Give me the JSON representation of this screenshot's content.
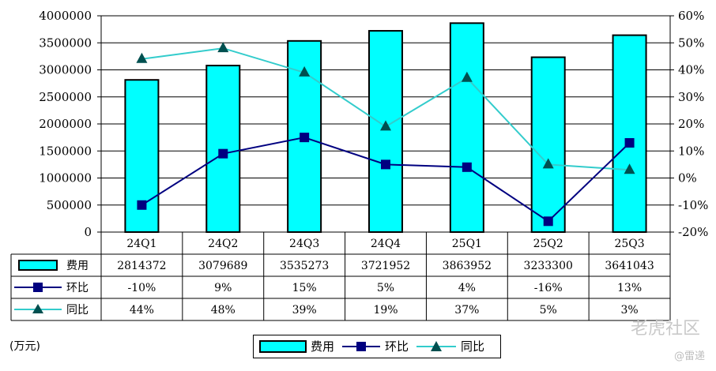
{
  "chart_data": {
    "type": "bar",
    "categories": [
      "24Q1",
      "24Q2",
      "24Q3",
      "24Q4",
      "25Q1",
      "25Q2",
      "25Q3"
    ],
    "series": [
      {
        "name": "费用",
        "kind": "bar",
        "axis": "left",
        "values": [
          2814372,
          3079689,
          3535273,
          3721952,
          3863952,
          3233300,
          3641043
        ]
      },
      {
        "name": "环比",
        "kind": "line",
        "axis": "right",
        "marker": "square",
        "values": [
          -10,
          9,
          15,
          5,
          4,
          -16,
          13
        ]
      },
      {
        "name": "同比",
        "kind": "line",
        "axis": "right",
        "marker": "triangle",
        "values": [
          44,
          48,
          39,
          19,
          37,
          5,
          3
        ]
      }
    ],
    "table": {
      "费用": [
        "2814372",
        "3079689",
        "3535273",
        "3721952",
        "3863952",
        "3233300",
        "3641043"
      ],
      "环比": [
        "-10%",
        "9%",
        "15%",
        "5%",
        "4%",
        "-16%",
        "13%"
      ],
      "同比": [
        "44%",
        "48%",
        "39%",
        "19%",
        "37%",
        "5%",
        "3%"
      ]
    },
    "y_left": {
      "range": [
        0,
        4000000
      ],
      "ticks": [
        "0",
        "500000",
        "1000000",
        "1500000",
        "2000000",
        "2500000",
        "3000000",
        "3500000",
        "4000000"
      ]
    },
    "y_right": {
      "range": [
        -20,
        60
      ],
      "ticks": [
        "-20%",
        "-10%",
        "0%",
        "10%",
        "20%",
        "30%",
        "40%",
        "50%",
        "60%"
      ]
    },
    "unit_label": "(万元)",
    "legend": [
      "费用",
      "环比",
      "同比"
    ],
    "legend_position": "bottom",
    "grid": true,
    "colors": {
      "bar": "#00ffff",
      "qoq": "#000080",
      "yoy": "#33cccc"
    }
  },
  "watermark": {
    "main": "老虎社区",
    "sub": "@雷递"
  }
}
